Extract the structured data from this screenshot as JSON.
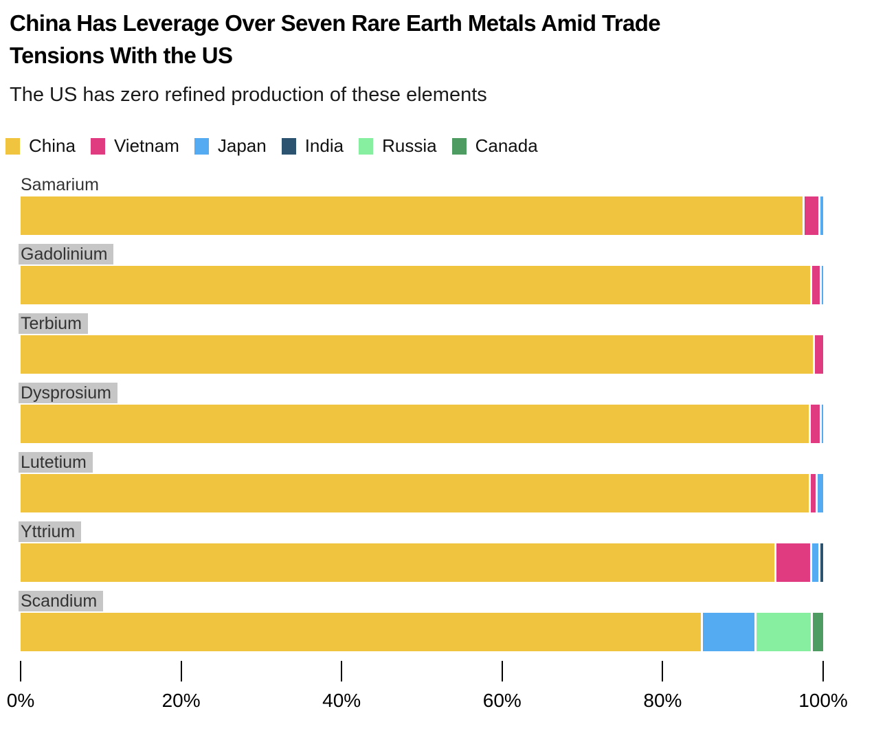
{
  "header": {
    "title": "China Has Leverage Over Seven Rare Earth Metals Amid Trade Tensions With the US",
    "title_lines": [
      "China Has Leverage Over Seven Rare Earth Metals Amid Trade",
      "Tensions With the US"
    ],
    "subtitle": "The US has zero refined production of these elements"
  },
  "legend": {
    "position": "top",
    "items": [
      {
        "label": "China",
        "color": "#F0C43E"
      },
      {
        "label": "Vietnam",
        "color": "#E03A80"
      },
      {
        "label": "Japan",
        "color": "#55ABF2"
      },
      {
        "label": "India",
        "color": "#2C5470"
      },
      {
        "label": "Russia",
        "color": "#87F0A0"
      },
      {
        "label": "Canada",
        "color": "#4F9C62"
      }
    ]
  },
  "chart_data": {
    "type": "bar",
    "orientation": "horizontal",
    "stacked": true,
    "unit": "percent share of refined production",
    "title": "China Has Leverage Over Seven Rare Earth Metals Amid Trade Tensions With the US",
    "subtitle": "The US has zero refined production of these elements",
    "categories": [
      "Samarium",
      "Gadolinium",
      "Terbium",
      "Dysprosium",
      "Lutetium",
      "Yttrium",
      "Scandium"
    ],
    "category_label_highlighted": [
      false,
      true,
      true,
      true,
      true,
      true,
      true
    ],
    "series": [
      {
        "name": "China",
        "color": "#F0C43E",
        "values": [
          97.4,
          98.4,
          98.7,
          98.2,
          98.2,
          93.9,
          84.8
        ]
      },
      {
        "name": "Vietnam",
        "color": "#E03A80",
        "values": [
          2.0,
          1.2,
          1.3,
          1.4,
          0.9,
          4.5,
          0
        ]
      },
      {
        "name": "Japan",
        "color": "#55ABF2",
        "values": [
          0.6,
          0.4,
          0,
          0.4,
          0.9,
          1.0,
          6.6
        ]
      },
      {
        "name": "India",
        "color": "#2C5470",
        "values": [
          0,
          0,
          0,
          0,
          0,
          0.6,
          0
        ]
      },
      {
        "name": "Russia",
        "color": "#87F0A0",
        "values": [
          0,
          0,
          0,
          0,
          0,
          0,
          7.1
        ]
      },
      {
        "name": "Canada",
        "color": "#4F9C62",
        "values": [
          0,
          0,
          0,
          0,
          0,
          0,
          1.5
        ]
      }
    ],
    "x_ticks": [
      "0%",
      "20%",
      "40%",
      "60%",
      "80%",
      "100%"
    ],
    "xlim": [
      0,
      100
    ],
    "grid": false,
    "legend_position": "top"
  },
  "colors": {
    "label_highlight": "#C6C6C6",
    "segment_separator": "#FFFFFF",
    "axis_tick": "#000000",
    "background": "#FFFFFF"
  }
}
